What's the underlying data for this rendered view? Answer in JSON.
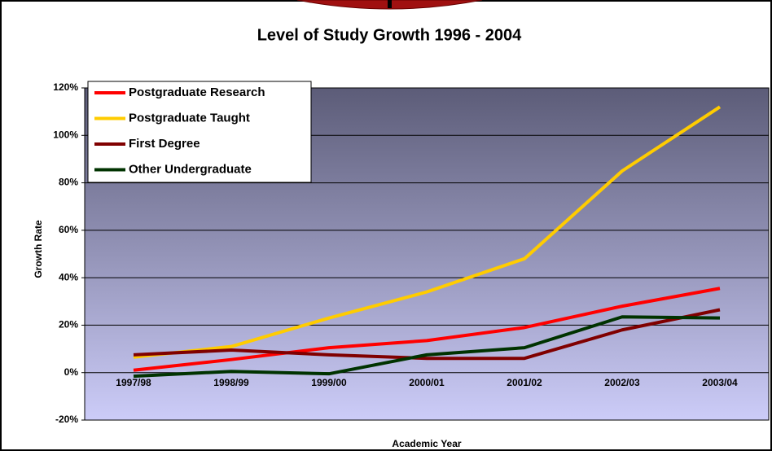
{
  "chart_data": {
    "type": "line",
    "title": "Level of Study Growth 1996 - 2004",
    "x_label": "Academic Year",
    "y_label": "Growth Rate",
    "categories": [
      "1997/98",
      "1998/99",
      "1999/00",
      "2000/01",
      "2001/02",
      "2002/03",
      "2003/04"
    ],
    "series": [
      {
        "name": "Postgraduate Research",
        "color": "#ff0000",
        "values": [
          1,
          5.5,
          10.5,
          13.5,
          19,
          28,
          35.5
        ]
      },
      {
        "name": "Postgraduate Taught",
        "color": "#ffcc00",
        "values": [
          6.5,
          11,
          23,
          34,
          48,
          85,
          112
        ]
      },
      {
        "name": "First Degree",
        "color": "#800000",
        "values": [
          7.5,
          9.5,
          7.5,
          6,
          6,
          18,
          26.5
        ]
      },
      {
        "name": "Other Undergraduate",
        "color": "#003300",
        "values": [
          -1.5,
          0.5,
          -0.5,
          7.5,
          10.5,
          23.5,
          23
        ]
      }
    ],
    "ylim": [
      -20,
      120
    ],
    "yticks": [
      {
        "value": -20,
        "label": "-20%"
      },
      {
        "value": 0,
        "label": "0%"
      },
      {
        "value": 20,
        "label": "20%"
      },
      {
        "value": 40,
        "label": "40%"
      },
      {
        "value": 60,
        "label": "60%"
      },
      {
        "value": 80,
        "label": "80%"
      },
      {
        "value": 100,
        "label": "100%"
      },
      {
        "value": 120,
        "label": "120%"
      }
    ],
    "grid": true,
    "legend": "upper-left"
  }
}
